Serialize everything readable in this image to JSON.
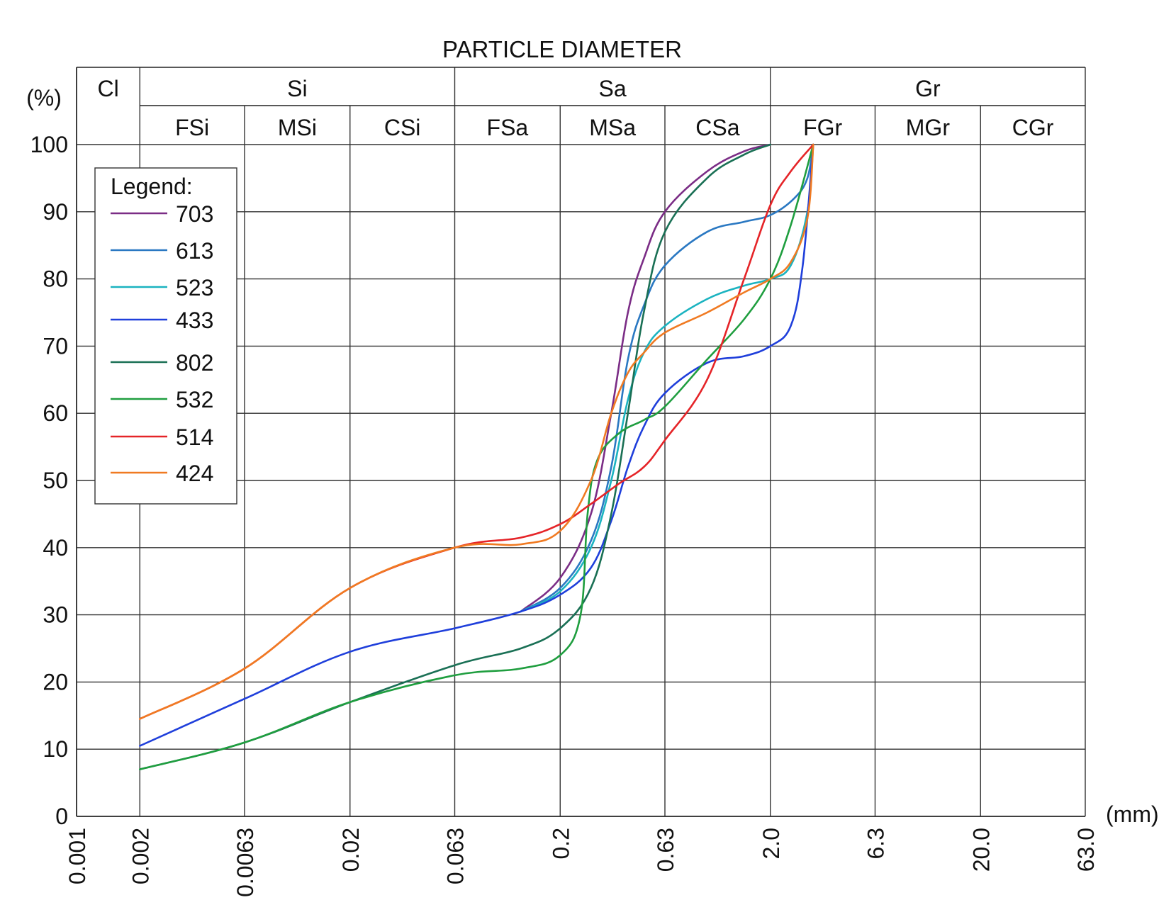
{
  "chart_data": {
    "type": "line",
    "title": "PARTICLE DIAMETER",
    "ylabel": "(%)",
    "xlabel": "(mm)",
    "x_scale": "log",
    "xlim": [
      0.001,
      63.0
    ],
    "ylim": [
      0,
      100
    ],
    "x_ticks": [
      0.001,
      0.002,
      0.0063,
      0.02,
      0.063,
      0.2,
      0.63,
      2.0,
      6.3,
      20.0,
      63.0
    ],
    "x_tick_labels": [
      "0.001",
      "0.002",
      "0.0063",
      "0.02",
      "0.063",
      "0.2",
      "0.63",
      "2.0",
      "6.3",
      "20.0",
      "63.0"
    ],
    "y_ticks": [
      0,
      10,
      20,
      30,
      40,
      50,
      60,
      70,
      80,
      90,
      100
    ],
    "y_tick_labels": [
      "0",
      "10",
      "20",
      "30",
      "40",
      "50",
      "60",
      "70",
      "80",
      "90",
      "100"
    ],
    "fraction_groups": [
      {
        "label": "Cl",
        "from": 0.001,
        "to": 0.002
      },
      {
        "label": "Si",
        "from": 0.002,
        "to": 0.063
      },
      {
        "label": "Sa",
        "from": 0.063,
        "to": 2.0
      },
      {
        "label": "Gr",
        "from": 2.0,
        "to": 63.0
      }
    ],
    "fraction_subgroups": [
      {
        "label": "FSi",
        "from": 0.002,
        "to": 0.0063
      },
      {
        "label": "MSi",
        "from": 0.0063,
        "to": 0.02
      },
      {
        "label": "CSi",
        "from": 0.02,
        "to": 0.063
      },
      {
        "label": "FSa",
        "from": 0.063,
        "to": 0.2
      },
      {
        "label": "MSa",
        "from": 0.2,
        "to": 0.63
      },
      {
        "label": "CSa",
        "from": 0.63,
        "to": 2.0
      },
      {
        "label": "FGr",
        "from": 2.0,
        "to": 6.3
      },
      {
        "label": "MGr",
        "from": 6.3,
        "to": 20.0
      },
      {
        "label": "CGr",
        "from": 20.0,
        "to": 63.0
      }
    ],
    "legend_title": "Legend:",
    "legend_position": "top-left",
    "series": [
      {
        "name": "703",
        "color": "#7b2d86",
        "points": [
          [
            0.13,
            30.5
          ],
          [
            0.2,
            35.5
          ],
          [
            0.28,
            45
          ],
          [
            0.35,
            60
          ],
          [
            0.42,
            75
          ],
          [
            0.5,
            83
          ],
          [
            0.63,
            90
          ],
          [
            1.0,
            96
          ],
          [
            1.5,
            99
          ],
          [
            2.0,
            100
          ]
        ]
      },
      {
        "name": "613",
        "color": "#2a78c2",
        "points": [
          [
            0.13,
            30.5
          ],
          [
            0.2,
            34
          ],
          [
            0.28,
            41
          ],
          [
            0.35,
            52
          ],
          [
            0.42,
            68
          ],
          [
            0.5,
            76
          ],
          [
            0.63,
            82
          ],
          [
            1.0,
            87
          ],
          [
            1.5,
            88.5
          ],
          [
            2.0,
            89.5
          ],
          [
            2.6,
            92
          ],
          [
            3.0,
            95
          ],
          [
            3.2,
            100
          ]
        ]
      },
      {
        "name": "523",
        "color": "#1bb3c0",
        "points": [
          [
            0.13,
            30.5
          ],
          [
            0.2,
            33.5
          ],
          [
            0.28,
            40
          ],
          [
            0.35,
            50
          ],
          [
            0.42,
            62
          ],
          [
            0.5,
            69
          ],
          [
            0.63,
            73
          ],
          [
            1.0,
            77
          ],
          [
            1.5,
            79
          ],
          [
            2.0,
            80
          ],
          [
            2.5,
            82
          ],
          [
            3.0,
            90
          ],
          [
            3.2,
            100
          ]
        ]
      },
      {
        "name": "433",
        "color": "#1f3fdb",
        "points": [
          [
            0.002,
            10.5
          ],
          [
            0.0063,
            17.5
          ],
          [
            0.02,
            24.5
          ],
          [
            0.063,
            28
          ],
          [
            0.13,
            30.5
          ],
          [
            0.2,
            33
          ],
          [
            0.28,
            37
          ],
          [
            0.35,
            44
          ],
          [
            0.42,
            52
          ],
          [
            0.5,
            58
          ],
          [
            0.63,
            63
          ],
          [
            1.0,
            67.5
          ],
          [
            1.5,
            68.5
          ],
          [
            2.0,
            70
          ],
          [
            2.5,
            73
          ],
          [
            2.85,
            82
          ],
          [
            3.2,
            100
          ]
        ]
      },
      {
        "name": "802",
        "color": "#1a7055",
        "points": [
          [
            0.002,
            7
          ],
          [
            0.0063,
            11
          ],
          [
            0.02,
            17
          ],
          [
            0.063,
            22.5
          ],
          [
            0.13,
            25
          ],
          [
            0.2,
            28
          ],
          [
            0.28,
            34
          ],
          [
            0.35,
            45
          ],
          [
            0.42,
            60
          ],
          [
            0.5,
            75
          ],
          [
            0.63,
            87
          ],
          [
            1.0,
            95
          ],
          [
            1.5,
            98.5
          ],
          [
            2.0,
            100
          ]
        ]
      },
      {
        "name": "532",
        "color": "#1f9e3f",
        "points": [
          [
            0.002,
            7
          ],
          [
            0.0063,
            11
          ],
          [
            0.02,
            17
          ],
          [
            0.063,
            21
          ],
          [
            0.13,
            22
          ],
          [
            0.2,
            24
          ],
          [
            0.25,
            30
          ],
          [
            0.27,
            45
          ],
          [
            0.3,
            53
          ],
          [
            0.38,
            57
          ],
          [
            0.5,
            59
          ],
          [
            0.63,
            61
          ],
          [
            1.0,
            68
          ],
          [
            1.5,
            74
          ],
          [
            2.0,
            80
          ],
          [
            2.5,
            88
          ],
          [
            3.2,
            100
          ]
        ]
      },
      {
        "name": "514",
        "color": "#e52428",
        "points": [
          [
            0.002,
            14.5
          ],
          [
            0.0063,
            22
          ],
          [
            0.02,
            34
          ],
          [
            0.063,
            40
          ],
          [
            0.13,
            41.5
          ],
          [
            0.2,
            43.5
          ],
          [
            0.28,
            46.5
          ],
          [
            0.38,
            49.5
          ],
          [
            0.5,
            52
          ],
          [
            0.63,
            56
          ],
          [
            1.0,
            65
          ],
          [
            1.5,
            80
          ],
          [
            2.0,
            91
          ],
          [
            2.5,
            96
          ],
          [
            3.2,
            100
          ]
        ]
      },
      {
        "name": "424",
        "color": "#f07a22",
        "points": [
          [
            0.002,
            14.5
          ],
          [
            0.0063,
            22
          ],
          [
            0.02,
            34
          ],
          [
            0.063,
            40
          ],
          [
            0.13,
            40.5
          ],
          [
            0.2,
            42.5
          ],
          [
            0.28,
            50
          ],
          [
            0.35,
            60
          ],
          [
            0.42,
            66
          ],
          [
            0.5,
            69
          ],
          [
            0.63,
            72
          ],
          [
            1.0,
            75
          ],
          [
            1.5,
            78
          ],
          [
            2.0,
            80
          ],
          [
            2.5,
            82.5
          ],
          [
            3.0,
            89
          ],
          [
            3.2,
            100
          ]
        ]
      }
    ]
  }
}
